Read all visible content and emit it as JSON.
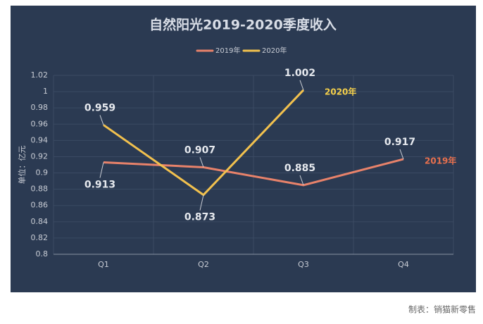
{
  "chart_data": {
    "type": "line",
    "title": "自然阳光2019-2020季度收入",
    "y_label": "单位：亿元",
    "categories": [
      "Q1",
      "Q2",
      "Q3",
      "Q4"
    ],
    "series": [
      {
        "name": "2019年",
        "color": "#e8826a",
        "label_color": "#e8704e",
        "values": [
          0.913,
          0.907,
          0.885,
          0.917
        ]
      },
      {
        "name": "2020年",
        "color": "#f2c14e",
        "label_color": "#f5d04a",
        "values": [
          0.959,
          0.873,
          1.002,
          null
        ]
      }
    ],
    "ylim": [
      0.8,
      1.02
    ],
    "yticks": [
      0.8,
      0.82,
      0.84,
      0.86,
      0.88,
      0.9,
      0.92,
      0.94,
      0.96,
      0.98,
      1,
      1.02
    ],
    "grid": true,
    "legend": "top",
    "source": "制表：销猫新零售"
  }
}
